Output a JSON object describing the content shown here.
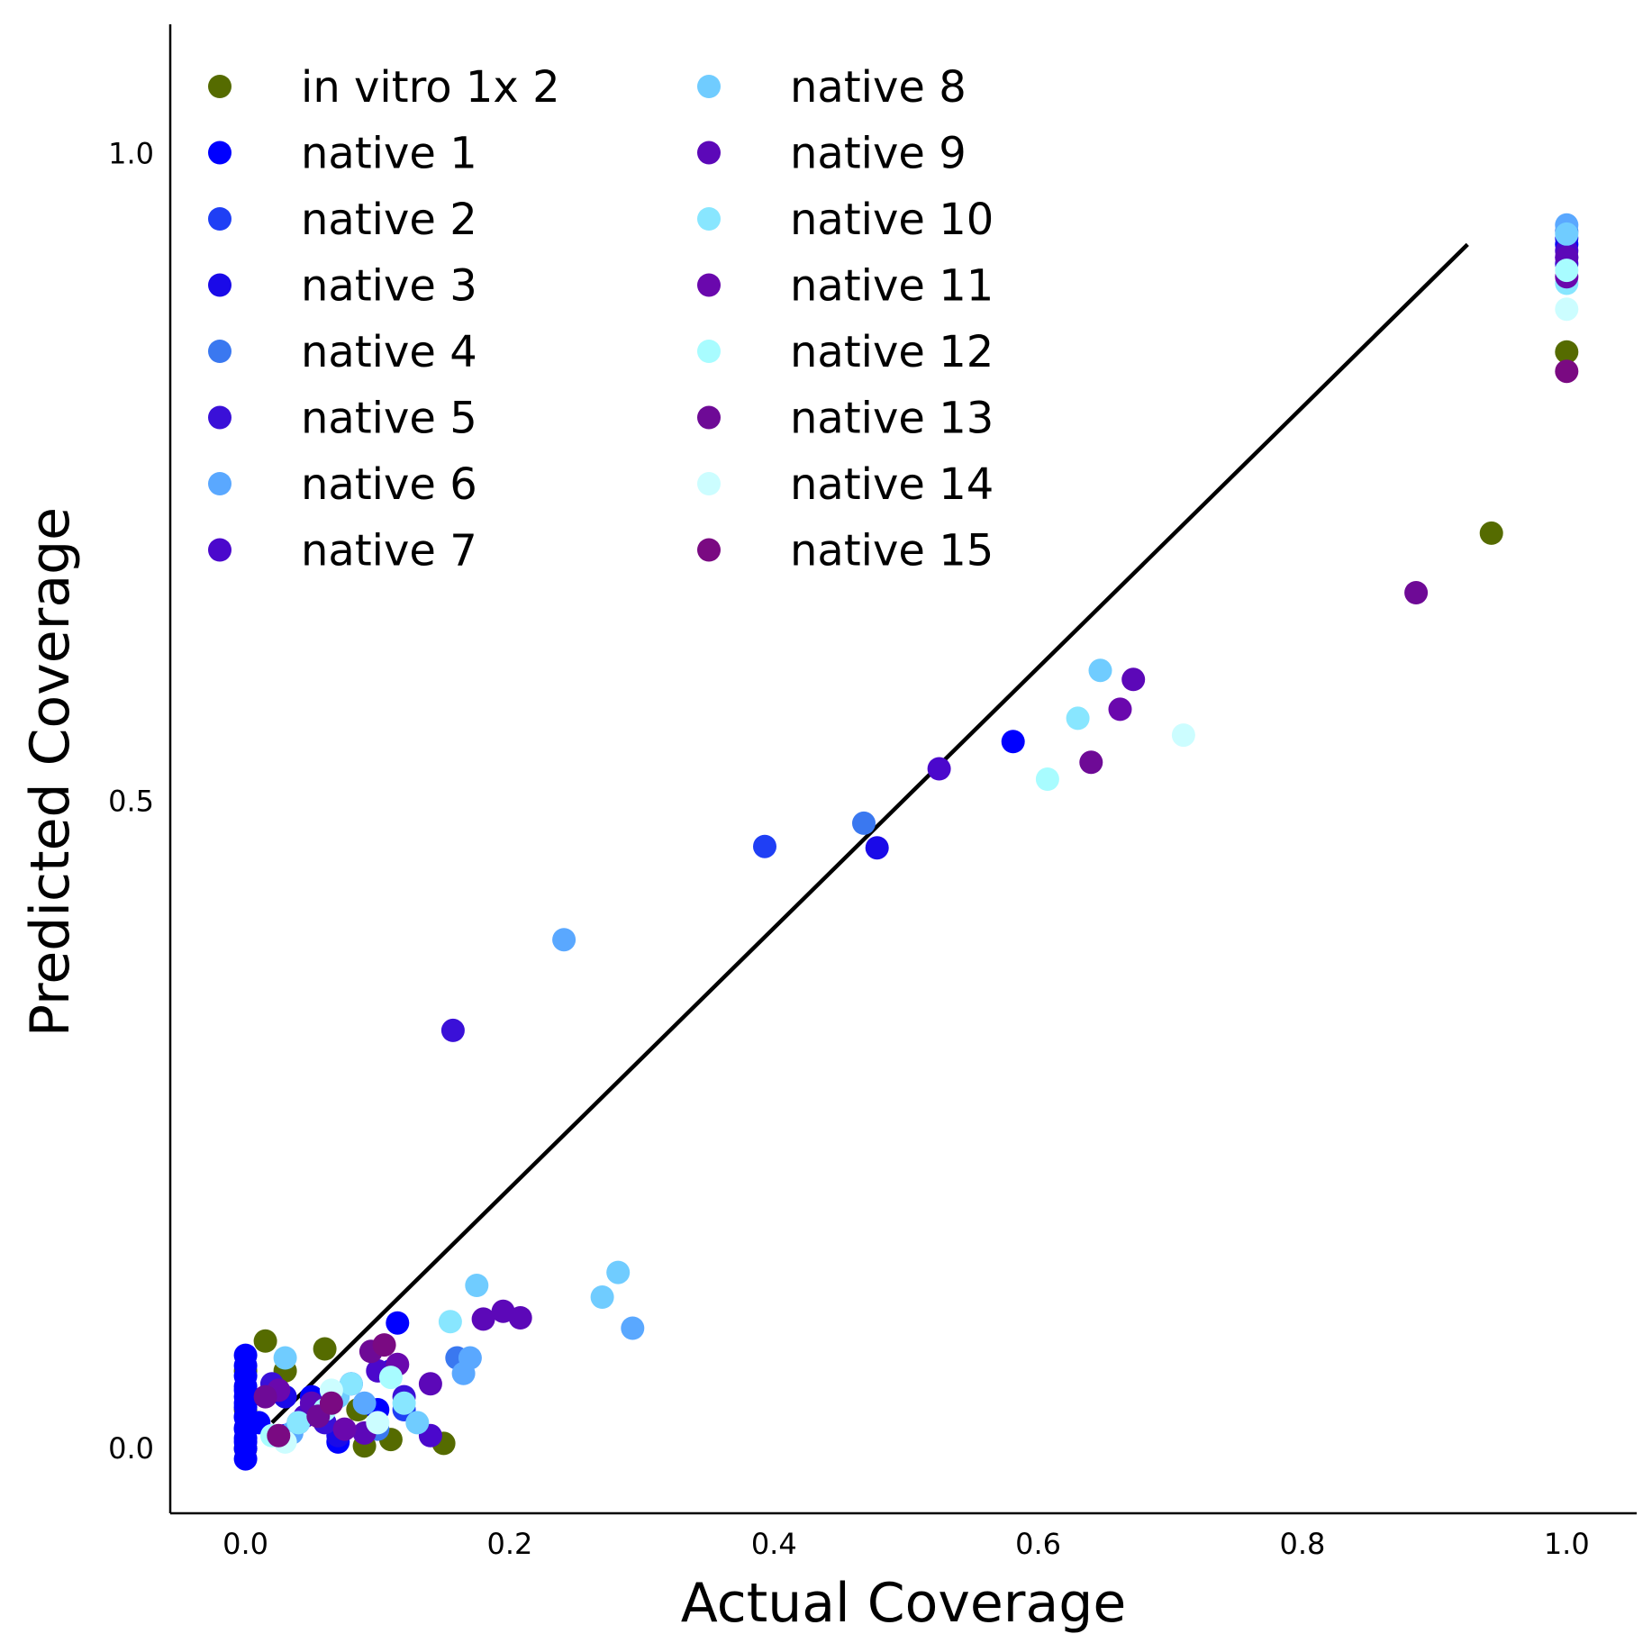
{
  "chart_data": {
    "type": "scatter",
    "xlabel": "Actual Coverage",
    "ylabel": "Predicted Coverage",
    "xlim": [
      -0.057,
      1.053
    ],
    "ylim": [
      -0.05,
      1.1
    ],
    "xticks": [
      "0.0",
      "0.2",
      "0.4",
      "0.6",
      "0.8",
      "1.0"
    ],
    "yticks": [
      "0.0",
      "0.5",
      "1.0"
    ],
    "legend_placement": "top-left, two columns",
    "grid": false,
    "reference_line": {
      "x": [
        0.02,
        0.925
      ],
      "y": [
        0.02,
        0.93
      ],
      "color": "#000000"
    },
    "series": [
      {
        "name": "in vitro 1x 2",
        "color": "#556b00",
        "x": [
          0.0,
          0.0,
          0.0,
          0.015,
          0.03,
          0.06,
          0.085,
          0.09,
          0.11,
          0.15,
          0.943,
          1.0
        ],
        "y": [
          0.0,
          0.03,
          0.06,
          0.083,
          0.06,
          0.077,
          0.03,
          0.002,
          0.007,
          0.004,
          0.707,
          0.847
        ]
      },
      {
        "name": "native 1",
        "color": "#0000ff",
        "x": [
          0.0,
          0.0,
          0.0,
          0.0,
          0.0,
          0.0,
          0.0,
          0.0,
          0.0,
          0.0,
          0.0,
          0.0,
          0.0,
          0.0,
          0.0,
          0.0,
          0.01,
          0.03,
          0.05,
          0.07,
          0.1,
          0.115,
          0.581,
          1.0
        ],
        "y": [
          -0.008,
          0.0,
          0.008,
          0.016,
          0.024,
          0.032,
          0.04,
          0.048,
          0.056,
          0.064,
          0.072,
          0.005,
          0.015,
          0.025,
          0.035,
          0.045,
          0.02,
          0.01,
          0.04,
          0.005,
          0.03,
          0.097,
          0.546,
          0.93
        ]
      },
      {
        "name": "native 2",
        "color": "#1f3ff5",
        "x": [
          0.04,
          0.08,
          0.12,
          0.393,
          1.0
        ],
        "y": [
          0.02,
          0.05,
          0.03,
          0.465,
          0.92
        ]
      },
      {
        "name": "native 3",
        "color": "#1a0ae8",
        "x": [
          0.03,
          0.07,
          0.11,
          0.478,
          1.0
        ],
        "y": [
          0.04,
          0.01,
          0.06,
          0.464,
          0.935
        ]
      },
      {
        "name": "native 4",
        "color": "#3a78f0",
        "x": [
          0.05,
          0.1,
          0.16,
          0.468,
          1.0
        ],
        "y": [
          0.03,
          0.015,
          0.07,
          0.483,
          0.94
        ]
      },
      {
        "name": "native 5",
        "color": "#3a10d8",
        "x": [
          0.02,
          0.06,
          0.12,
          0.157,
          1.0
        ],
        "y": [
          0.05,
          0.02,
          0.04,
          0.323,
          0.915
        ]
      },
      {
        "name": "native 6",
        "color": "#5aa8ff",
        "x": [
          0.035,
          0.09,
          0.165,
          0.17,
          0.241,
          0.293,
          1.0
        ],
        "y": [
          0.012,
          0.035,
          0.058,
          0.07,
          0.393,
          0.093,
          0.945
        ]
      },
      {
        "name": "native 7",
        "color": "#4b08cc",
        "x": [
          0.045,
          0.1,
          0.14,
          0.525,
          1.0
        ],
        "y": [
          0.025,
          0.06,
          0.01,
          0.525,
          0.925
        ]
      },
      {
        "name": "native 8",
        "color": "#70ccff",
        "x": [
          0.03,
          0.07,
          0.13,
          0.175,
          0.27,
          0.282,
          0.647,
          1.0
        ],
        "y": [
          0.07,
          0.04,
          0.02,
          0.126,
          0.117,
          0.136,
          0.601,
          0.938
        ]
      },
      {
        "name": "native 9",
        "color": "#5c08b8",
        "x": [
          0.05,
          0.09,
          0.14,
          0.18,
          0.195,
          0.208,
          0.672,
          1.0
        ],
        "y": [
          0.035,
          0.012,
          0.05,
          0.1,
          0.106,
          0.101,
          0.594,
          0.92
        ]
      },
      {
        "name": "native 10",
        "color": "#88e6ff",
        "x": [
          0.04,
          0.08,
          0.12,
          0.155,
          0.63,
          1.0
        ],
        "y": [
          0.02,
          0.05,
          0.035,
          0.098,
          0.564,
          0.9
        ]
      },
      {
        "name": "native 11",
        "color": "#6a08ad",
        "x": [
          0.025,
          0.075,
          0.115,
          0.662,
          1.0
        ],
        "y": [
          0.045,
          0.015,
          0.065,
          0.571,
          0.905
        ]
      },
      {
        "name": "native 12",
        "color": "#a8fcff",
        "x": [
          0.02,
          0.06,
          0.11,
          0.607,
          1.0
        ],
        "y": [
          0.01,
          0.03,
          0.055,
          0.517,
          0.91
        ]
      },
      {
        "name": "native 13",
        "color": "#6e0a96",
        "x": [
          0.015,
          0.055,
          0.095,
          0.64,
          0.886
        ],
        "y": [
          0.04,
          0.025,
          0.075,
          0.53,
          0.661
        ]
      },
      {
        "name": "native 14",
        "color": "#ccfdff",
        "x": [
          0.03,
          0.065,
          0.1,
          0.71,
          1.0
        ],
        "y": [
          0.005,
          0.045,
          0.02,
          0.551,
          0.88
        ]
      },
      {
        "name": "native 15",
        "color": "#7a0a82",
        "x": [
          0.025,
          0.065,
          0.105,
          1.0
        ],
        "y": [
          0.01,
          0.035,
          0.08,
          0.832
        ]
      }
    ]
  }
}
